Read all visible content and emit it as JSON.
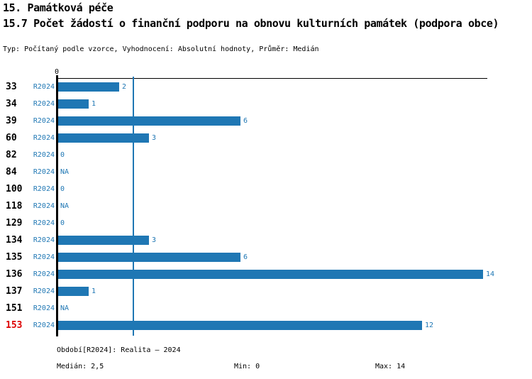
{
  "header": {
    "title": "15. Památková péče",
    "subtitle": "15.7 Počet žádostí o finanční podporu na obnovu kulturních památek (podpora obce)",
    "meta": "Typ: Počítaný podle vzorce, Vyhodnocení: Absolutní hodnoty, Průměr: Medián"
  },
  "chart_data": {
    "type": "bar",
    "orientation": "horizontal",
    "title": "15.7 Počet žádostí o finanční podporu na obnovu kulturních památek (podpora obce)",
    "categories": [
      "33",
      "34",
      "39",
      "60",
      "82",
      "84",
      "100",
      "118",
      "129",
      "134",
      "135",
      "136",
      "137",
      "151",
      "153"
    ],
    "series": [
      {
        "name": "R2024",
        "values": [
          2,
          1,
          6,
          3,
          0,
          null,
          0,
          null,
          0,
          3,
          6,
          14,
          1,
          null,
          12
        ]
      }
    ],
    "value_labels": [
      "2",
      "1",
      "6",
      "3",
      "0",
      "NA",
      "0",
      "NA",
      "0",
      "3",
      "6",
      "14",
      "1",
      "NA",
      "12"
    ],
    "x_ticks": [
      {
        "value": 0,
        "label": "0"
      }
    ],
    "xlim": [
      0,
      14.2
    ],
    "median_line_x": 2.5,
    "highlighted_category": "153",
    "grid": false,
    "legend_position": "none",
    "bar_color": "#1f77b4",
    "accent_text_color": "#1f77b4",
    "highlight_color": "#dd0000",
    "axis_color": "#000000"
  },
  "footer": {
    "period_info": "Období[R2024]: Realita – 2024",
    "median_label": "Medián: 2,5",
    "min_label": "Min: 0",
    "max_label": "Max: 14"
  }
}
